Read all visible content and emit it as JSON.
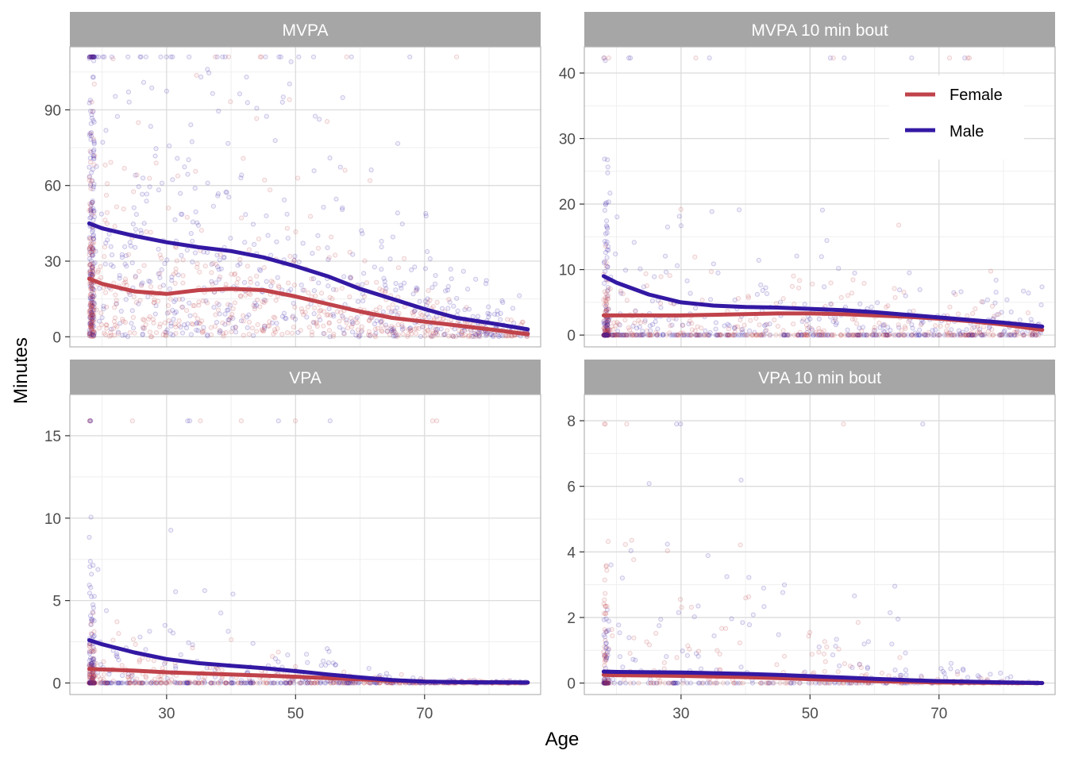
{
  "chart_data": {
    "type": "scatter",
    "xlabel": "Age",
    "ylabel": "Minutes",
    "x_range": [
      15,
      88
    ],
    "x_ticks": [
      30,
      50,
      70
    ],
    "legend": {
      "placement": "inside top-right of MVPA 10 min bout panel",
      "entries": [
        {
          "name": "Female",
          "color": "#c0424a"
        },
        {
          "name": "Male",
          "color": "#3318a3"
        }
      ]
    },
    "colors": {
      "female": "#c0424a",
      "male": "#3318a3",
      "strip": "#a6a6a6",
      "grid_major": "#dcdcdc",
      "grid_minor": "#efefef",
      "panel_border": "#b3b3b3"
    },
    "points_note_hidden": "",
    "panels": [
      {
        "title": "MVPA",
        "ylim": [
          -4,
          115
        ],
        "y_ticks": [
          0,
          30,
          60,
          90
        ],
        "cap": 111,
        "series": [
          {
            "name": "Female",
            "x": [
              18,
              20,
              25,
              30,
              35,
              40,
              45,
              50,
              55,
              60,
              65,
              70,
              75,
              80,
              86
            ],
            "y": [
              23,
              21,
              18,
              17,
              18.5,
              19,
              18.5,
              16,
              13,
              10,
              7.5,
              6,
              4.5,
              3,
              1
            ]
          },
          {
            "name": "Male",
            "x": [
              18,
              20,
              25,
              30,
              35,
              40,
              45,
              50,
              55,
              60,
              65,
              70,
              75,
              80,
              86
            ],
            "y": [
              45,
              43,
              40,
              37.5,
              35.5,
              34,
              31.5,
              28,
              24,
              19,
              15,
              11,
              7.5,
              5.5,
              3
            ]
          }
        ]
      },
      {
        "title": "MVPA 10 min bout",
        "ylim": [
          -1.8,
          44
        ],
        "y_ticks": [
          0,
          10,
          20,
          30,
          40
        ],
        "cap": 42.3,
        "series": [
          {
            "name": "Female",
            "x": [
              18,
              20,
              25,
              30,
              35,
              40,
              45,
              50,
              55,
              60,
              65,
              70,
              75,
              80,
              86
            ],
            "y": [
              3,
              3,
              3,
              3,
              3.1,
              3.2,
              3.3,
              3.3,
              3.2,
              3,
              2.8,
              2.5,
              2.1,
              1.6,
              0.8
            ]
          },
          {
            "name": "Male",
            "x": [
              18,
              20,
              25,
              30,
              35,
              40,
              45,
              50,
              55,
              60,
              65,
              70,
              75,
              80,
              86
            ],
            "y": [
              9,
              8,
              6.2,
              5,
              4.5,
              4.3,
              4.2,
              4,
              3.8,
              3.5,
              3.1,
              2.7,
              2.3,
              1.9,
              1.3
            ]
          }
        ]
      },
      {
        "title": "VPA",
        "ylim": [
          -0.7,
          17.5
        ],
        "y_ticks": [
          0,
          5,
          10,
          15
        ],
        "cap": 15.9,
        "series": [
          {
            "name": "Female",
            "x": [
              18,
              20,
              25,
              30,
              35,
              40,
              45,
              50,
              55,
              60,
              65,
              70,
              75,
              80,
              86
            ],
            "y": [
              0.85,
              0.82,
              0.75,
              0.65,
              0.58,
              0.52,
              0.45,
              0.38,
              0.3,
              0.22,
              0.14,
              0.08,
              0.05,
              0.03,
              0.02
            ]
          },
          {
            "name": "Male",
            "x": [
              18,
              20,
              25,
              30,
              35,
              40,
              45,
              50,
              55,
              60,
              65,
              70,
              75,
              80,
              86
            ],
            "y": [
              2.6,
              2.35,
              1.85,
              1.45,
              1.2,
              1.05,
              0.9,
              0.72,
              0.52,
              0.34,
              0.18,
              0.08,
              0.05,
              0.04,
              0.03
            ]
          }
        ]
      },
      {
        "title": "VPA 10 min bout",
        "ylim": [
          -0.35,
          8.8
        ],
        "y_ticks": [
          0,
          2,
          4,
          6,
          8
        ],
        "cap": 7.9,
        "series": [
          {
            "name": "Female",
            "x": [
              18,
              20,
              25,
              30,
              35,
              40,
              45,
              50,
              55,
              60,
              65,
              70,
              75,
              80,
              86
            ],
            "y": [
              0.25,
              0.24,
              0.23,
              0.22,
              0.2,
              0.18,
              0.15,
              0.12,
              0.09,
              0.06,
              0.04,
              0.02,
              0.01,
              0.005,
              0.0
            ]
          },
          {
            "name": "Male",
            "x": [
              18,
              20,
              25,
              30,
              35,
              40,
              45,
              50,
              55,
              60,
              65,
              70,
              75,
              80,
              86
            ],
            "y": [
              0.35,
              0.34,
              0.33,
              0.32,
              0.3,
              0.28,
              0.25,
              0.21,
              0.17,
              0.13,
              0.09,
              0.06,
              0.04,
              0.02,
              0.0
            ]
          }
        ]
      }
    ]
  }
}
